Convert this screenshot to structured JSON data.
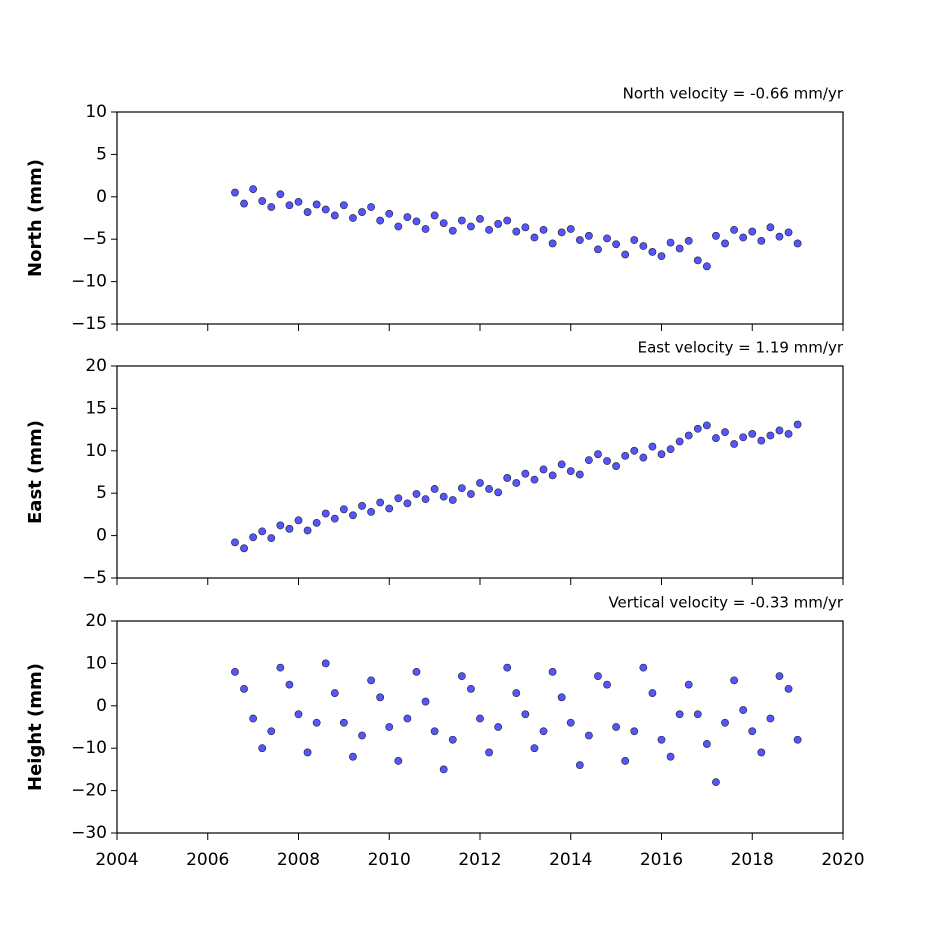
{
  "chart_data": [
    {
      "type": "scatter",
      "title": "North velocity = -0.66 mm/yr",
      "ylabel": "North (mm)",
      "color": "#5555ff",
      "x": [
        2006.6,
        2006.8,
        2007.0,
        2007.2,
        2007.4,
        2007.6,
        2007.8,
        2008.0,
        2008.2,
        2008.4,
        2008.6,
        2008.8,
        2009.0,
        2009.2,
        2009.4,
        2009.6,
        2009.8,
        2010.0,
        2010.2,
        2010.4,
        2010.6,
        2010.8,
        2011.0,
        2011.2,
        2011.4,
        2011.6,
        2011.8,
        2012.0,
        2012.2,
        2012.4,
        2012.6,
        2012.8,
        2013.0,
        2013.2,
        2013.4,
        2013.6,
        2013.8,
        2014.0,
        2014.2,
        2014.4,
        2014.6,
        2014.8,
        2015.0,
        2015.2,
        2015.4,
        2015.6,
        2015.8,
        2016.0,
        2016.2,
        2016.4,
        2016.6,
        2016.8,
        2017.0,
        2017.2,
        2017.4,
        2017.6,
        2017.8,
        2018.0,
        2018.2,
        2018.4,
        2018.6,
        2018.8,
        2019.0
      ],
      "values": [
        0.5,
        -0.8,
        0.9,
        -0.5,
        -1.2,
        0.3,
        -1.0,
        -0.6,
        -1.8,
        -0.9,
        -1.5,
        -2.2,
        -1.0,
        -2.5,
        -1.8,
        -1.2,
        -2.8,
        -2.0,
        -3.5,
        -2.4,
        -2.9,
        -3.8,
        -2.2,
        -3.1,
        -4.0,
        -2.8,
        -3.5,
        -2.6,
        -3.9,
        -3.2,
        -2.8,
        -4.1,
        -3.6,
        -4.8,
        -3.9,
        -5.5,
        -4.2,
        -3.8,
        -5.1,
        -4.6,
        -6.2,
        -4.9,
        -5.6,
        -6.8,
        -5.1,
        -5.8,
        -6.5,
        -7.0,
        -5.4,
        -6.1,
        -5.2,
        -7.5,
        -8.2,
        -4.6,
        -5.5,
        -3.9,
        -4.8,
        -4.1,
        -5.2,
        -3.6,
        -4.7,
        -4.2,
        -5.5
      ],
      "xlim": [
        2004,
        2020
      ],
      "xticks": [
        2004,
        2006,
        2008,
        2010,
        2012,
        2014,
        2016,
        2018,
        2020
      ],
      "ylim": [
        -15,
        10
      ],
      "yticks": [
        {
          "value": -15,
          "label": "−15"
        },
        {
          "value": -10,
          "label": "−10"
        },
        {
          "value": -5,
          "label": "−5"
        },
        0,
        5,
        10
      ]
    },
    {
      "type": "scatter",
      "title": "East velocity = 1.19 mm/yr",
      "ylabel": "East (mm)",
      "color": "#5555ff",
      "x": [
        2006.6,
        2006.8,
        2007.0,
        2007.2,
        2007.4,
        2007.6,
        2007.8,
        2008.0,
        2008.2,
        2008.4,
        2008.6,
        2008.8,
        2009.0,
        2009.2,
        2009.4,
        2009.6,
        2009.8,
        2010.0,
        2010.2,
        2010.4,
        2010.6,
        2010.8,
        2011.0,
        2011.2,
        2011.4,
        2011.6,
        2011.8,
        2012.0,
        2012.2,
        2012.4,
        2012.6,
        2012.8,
        2013.0,
        2013.2,
        2013.4,
        2013.6,
        2013.8,
        2014.0,
        2014.2,
        2014.4,
        2014.6,
        2014.8,
        2015.0,
        2015.2,
        2015.4,
        2015.6,
        2015.8,
        2016.0,
        2016.2,
        2016.4,
        2016.6,
        2016.8,
        2017.0,
        2017.2,
        2017.4,
        2017.6,
        2017.8,
        2018.0,
        2018.2,
        2018.4,
        2018.6,
        2018.8,
        2019.0
      ],
      "values": [
        -0.8,
        -1.5,
        -0.2,
        0.5,
        -0.3,
        1.2,
        0.8,
        1.8,
        0.6,
        1.5,
        2.6,
        2.0,
        3.1,
        2.4,
        3.5,
        2.8,
        3.9,
        3.2,
        4.4,
        3.8,
        4.9,
        4.3,
        5.5,
        4.6,
        4.2,
        5.6,
        4.9,
        6.2,
        5.5,
        5.1,
        6.8,
        6.2,
        7.3,
        6.6,
        7.8,
        7.1,
        8.4,
        7.6,
        7.2,
        8.9,
        9.6,
        8.8,
        8.2,
        9.4,
        10.0,
        9.2,
        10.5,
        9.6,
        10.2,
        11.1,
        11.8,
        12.6,
        13.0,
        11.5,
        12.2,
        10.8,
        11.6,
        12.0,
        11.2,
        11.8,
        12.4,
        12.0,
        13.1
      ],
      "xlim": [
        2004,
        2020
      ],
      "xticks": [
        2004,
        2006,
        2008,
        2010,
        2012,
        2014,
        2016,
        2018,
        2020
      ],
      "ylim": [
        -5,
        20
      ],
      "yticks": [
        {
          "value": -5,
          "label": "−5"
        },
        0,
        5,
        10,
        15,
        20
      ]
    },
    {
      "type": "scatter",
      "title": "Vertical velocity = -0.33 mm/yr",
      "ylabel": "Height (mm)",
      "color": "#5555ff",
      "x": [
        2006.6,
        2006.8,
        2007.0,
        2007.2,
        2007.4,
        2007.6,
        2007.8,
        2008.0,
        2008.2,
        2008.4,
        2008.6,
        2008.8,
        2009.0,
        2009.2,
        2009.4,
        2009.6,
        2009.8,
        2010.0,
        2010.2,
        2010.4,
        2010.6,
        2010.8,
        2011.0,
        2011.2,
        2011.4,
        2011.6,
        2011.8,
        2012.0,
        2012.2,
        2012.4,
        2012.6,
        2012.8,
        2013.0,
        2013.2,
        2013.4,
        2013.6,
        2013.8,
        2014.0,
        2014.2,
        2014.4,
        2014.6,
        2014.8,
        2015.0,
        2015.2,
        2015.4,
        2015.6,
        2015.8,
        2016.0,
        2016.2,
        2016.4,
        2016.6,
        2016.8,
        2017.0,
        2017.2,
        2017.4,
        2017.6,
        2017.8,
        2018.0,
        2018.2,
        2018.4,
        2018.6,
        2018.8,
        2019.0
      ],
      "values": [
        8,
        4,
        -3,
        -10,
        -6,
        9,
        5,
        -2,
        -11,
        -4,
        10,
        3,
        -4,
        -12,
        -7,
        6,
        2,
        -5,
        -13,
        -3,
        8,
        1,
        -6,
        -15,
        -8,
        7,
        4,
        -3,
        -11,
        -5,
        9,
        3,
        -2,
        -10,
        -6,
        8,
        2,
        -4,
        -14,
        -7,
        7,
        5,
        -5,
        -13,
        -6,
        9,
        3,
        -8,
        -12,
        -2,
        5,
        -2,
        -9,
        -18,
        -4,
        6,
        -1,
        -6,
        -11,
        -3,
        7,
        4,
        -8
      ],
      "xlim": [
        2004,
        2020
      ],
      "xticks": [
        2004,
        2006,
        2008,
        2010,
        2012,
        2014,
        2016,
        2018,
        2020
      ],
      "ylim": [
        -30,
        20
      ],
      "yticks": [
        {
          "value": -30,
          "label": "−30"
        },
        {
          "value": -20,
          "label": "−20"
        },
        {
          "value": -10,
          "label": "−10"
        },
        0,
        10,
        20
      ]
    }
  ]
}
